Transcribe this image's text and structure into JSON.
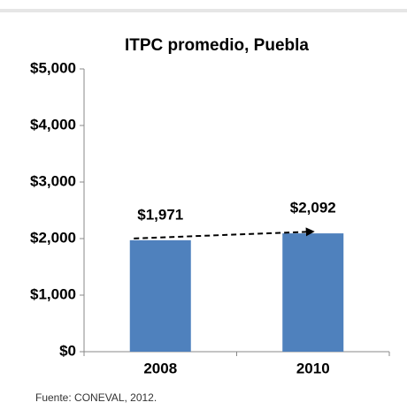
{
  "chart_data": {
    "type": "bar",
    "title": "ITPC promedio, Puebla",
    "categories": [
      "2008",
      "2010"
    ],
    "values": [
      1971,
      2092
    ],
    "value_labels": [
      "$1,971",
      "$2,092"
    ],
    "color": "#4f81bd",
    "ylim": [
      0,
      5000
    ],
    "yticks": [
      {
        "value": 0,
        "label": "$0"
      },
      {
        "value": 1000,
        "label": "$1,000"
      },
      {
        "value": 2000,
        "label": "$2,000"
      },
      {
        "value": 3000,
        "label": "$3,000"
      },
      {
        "value": 4000,
        "label": "$4,000"
      },
      {
        "value": 5000,
        "label": "$5,000"
      }
    ],
    "grid": false,
    "source": "Fuente: CONEVAL, 2012."
  }
}
